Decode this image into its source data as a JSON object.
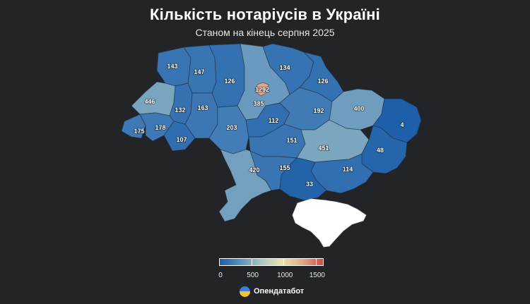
{
  "header": {
    "title": "Кількість нотаріусів в Україні",
    "subtitle": "Станом на кінець серпня 2025"
  },
  "map": {
    "crimea_color": "#ffffff",
    "regions": [
      {
        "id": "volyn",
        "value": 143
      },
      {
        "id": "rivne",
        "value": 147
      },
      {
        "id": "zhytomyr",
        "value": 126
      },
      {
        "id": "kyiv-oblast",
        "value": 385
      },
      {
        "id": "kyiv-city",
        "value": 1292
      },
      {
        "id": "chernihiv",
        "value": 134
      },
      {
        "id": "sumy",
        "value": 126
      },
      {
        "id": "lviv",
        "value": 446
      },
      {
        "id": "ternopil",
        "value": 132
      },
      {
        "id": "khmelnytskyi",
        "value": 163
      },
      {
        "id": "vinnytsia",
        "value": 203
      },
      {
        "id": "cherkasy",
        "value": 112
      },
      {
        "id": "poltava",
        "value": 192
      },
      {
        "id": "kharkiv",
        "value": 400
      },
      {
        "id": "luhansk",
        "value": 4
      },
      {
        "id": "zakarpattia",
        "value": 175
      },
      {
        "id": "ivano-frankivsk",
        "value": 178
      },
      {
        "id": "chernivtsi",
        "value": 107
      },
      {
        "id": "kirovohrad",
        "value": 151
      },
      {
        "id": "dnipropetrovsk",
        "value": 451
      },
      {
        "id": "donetsk",
        "value": 48
      },
      {
        "id": "odesa",
        "value": 420
      },
      {
        "id": "mykolaiv",
        "value": 155
      },
      {
        "id": "zaporizhzhia",
        "value": 114
      },
      {
        "id": "kherson",
        "value": 33
      }
    ]
  },
  "legend": {
    "min": 0,
    "max": 1600,
    "ticks": [
      "0",
      "500",
      "1000",
      "1500"
    ],
    "tick_values": [
      0,
      500,
      1000,
      1500
    ],
    "colors": [
      "#1c5ea8",
      "#5a8fbf",
      "#a9c6c0",
      "#e9e2b2",
      "#e4a78a",
      "#c9504a"
    ]
  },
  "brand": {
    "name": "Опендатабот",
    "logo_colors": [
      "#3d7ee0",
      "#f2c230"
    ]
  }
}
